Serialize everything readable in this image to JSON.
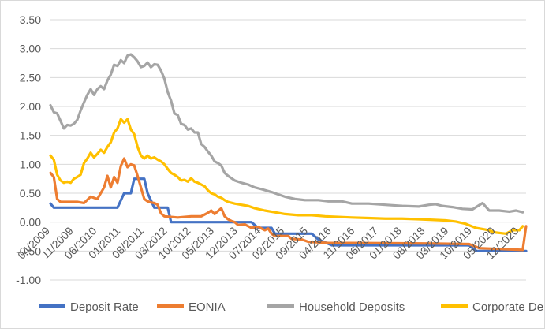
{
  "chart_data": {
    "type": "line",
    "title": "",
    "xlabel": "",
    "ylabel": "",
    "ylim": [
      -1.0,
      3.5
    ],
    "yticks": [
      "3.50",
      "3.00",
      "2.50",
      "2.00",
      "1.50",
      "1.00",
      "0.50",
      "0.00",
      "-0.50",
      "-1.00"
    ],
    "ytick_values": [
      3.5,
      3.0,
      2.5,
      2.0,
      1.5,
      1.0,
      0.5,
      0.0,
      -0.5,
      -1.0
    ],
    "x_start": "04/2009",
    "n_months": 143,
    "xtick_labels": [
      "04/2009",
      "11/2009",
      "06/2010",
      "01/2011",
      "08/2011",
      "03/2012",
      "10/2012",
      "05/2013",
      "12/2013",
      "07/2014",
      "02/2015",
      "09/2015",
      "04/2016",
      "11/2016",
      "06/2017",
      "01/2018",
      "08/2018",
      "03/2019",
      "10/2019",
      "05/2020",
      "12/2020"
    ],
    "xtick_month_index": [
      0,
      7,
      14,
      21,
      28,
      35,
      42,
      49,
      56,
      63,
      70,
      77,
      84,
      91,
      98,
      105,
      112,
      119,
      126,
      133,
      140
    ],
    "legend_position": "bottom",
    "series": [
      {
        "name": "Deposit Rate",
        "color": "#4472C4",
        "points": [
          [
            0,
            0.32
          ],
          [
            1,
            0.25
          ],
          [
            20,
            0.25
          ],
          [
            22,
            0.5
          ],
          [
            24,
            0.5
          ],
          [
            25,
            0.75
          ],
          [
            28,
            0.75
          ],
          [
            29,
            0.5
          ],
          [
            31,
            0.25
          ],
          [
            35,
            0.25
          ],
          [
            36,
            0.0
          ],
          [
            60,
            0.0
          ],
          [
            62,
            -0.1
          ],
          [
            66,
            -0.1
          ],
          [
            67,
            -0.2
          ],
          [
            78,
            -0.2
          ],
          [
            80,
            -0.3
          ],
          [
            84,
            -0.4
          ],
          [
            125,
            -0.4
          ],
          [
            127,
            -0.5
          ],
          [
            142,
            -0.5
          ]
        ]
      },
      {
        "name": "EONIA",
        "color": "#ED7D31",
        "points": [
          [
            0,
            0.85
          ],
          [
            1,
            0.78
          ],
          [
            2,
            0.4
          ],
          [
            3,
            0.35
          ],
          [
            8,
            0.35
          ],
          [
            10,
            0.33
          ],
          [
            12,
            0.44
          ],
          [
            14,
            0.4
          ],
          [
            16,
            0.6
          ],
          [
            17,
            0.8
          ],
          [
            18,
            0.6
          ],
          [
            19,
            0.78
          ],
          [
            20,
            0.68
          ],
          [
            21,
            0.97
          ],
          [
            22,
            1.1
          ],
          [
            23,
            0.95
          ],
          [
            24,
            1.0
          ],
          [
            25,
            0.98
          ],
          [
            26,
            0.8
          ],
          [
            27,
            0.6
          ],
          [
            28,
            0.4
          ],
          [
            29,
            0.36
          ],
          [
            30,
            0.34
          ],
          [
            31,
            0.33
          ],
          [
            32,
            0.3
          ],
          [
            33,
            0.15
          ],
          [
            34,
            0.1
          ],
          [
            38,
            0.08
          ],
          [
            42,
            0.1
          ],
          [
            45,
            0.1
          ],
          [
            47,
            0.16
          ],
          [
            48,
            0.2
          ],
          [
            49,
            0.14
          ],
          [
            50,
            0.19
          ],
          [
            51,
            0.24
          ],
          [
            52,
            0.1
          ],
          [
            53,
            0.05
          ],
          [
            54,
            0.02
          ],
          [
            55,
            0.0
          ],
          [
            56,
            -0.05
          ],
          [
            58,
            -0.04
          ],
          [
            60,
            -0.1
          ],
          [
            62,
            -0.08
          ],
          [
            64,
            -0.14
          ],
          [
            65,
            -0.11
          ],
          [
            66,
            -0.2
          ],
          [
            67,
            -0.24
          ],
          [
            71,
            -0.24
          ],
          [
            72,
            -0.29
          ],
          [
            75,
            -0.3
          ],
          [
            77,
            -0.34
          ],
          [
            80,
            -0.35
          ],
          [
            83,
            -0.36
          ],
          [
            90,
            -0.36
          ],
          [
            115,
            -0.37
          ],
          [
            125,
            -0.38
          ],
          [
            128,
            -0.45
          ],
          [
            141,
            -0.48
          ],
          [
            142,
            -0.07
          ]
        ]
      },
      {
        "name": "Household Deposits",
        "color": "#A5A5A5",
        "points": [
          [
            0,
            2.02
          ],
          [
            1,
            1.9
          ],
          [
            2,
            1.88
          ],
          [
            3,
            1.75
          ],
          [
            4,
            1.62
          ],
          [
            5,
            1.68
          ],
          [
            6,
            1.67
          ],
          [
            7,
            1.7
          ],
          [
            8,
            1.77
          ],
          [
            9,
            1.93
          ],
          [
            10,
            2.07
          ],
          [
            11,
            2.2
          ],
          [
            12,
            2.3
          ],
          [
            13,
            2.2
          ],
          [
            14,
            2.3
          ],
          [
            15,
            2.35
          ],
          [
            16,
            2.3
          ],
          [
            17,
            2.45
          ],
          [
            18,
            2.55
          ],
          [
            19,
            2.72
          ],
          [
            20,
            2.7
          ],
          [
            21,
            2.8
          ],
          [
            22,
            2.75
          ],
          [
            23,
            2.88
          ],
          [
            24,
            2.9
          ],
          [
            25,
            2.85
          ],
          [
            26,
            2.78
          ],
          [
            27,
            2.68
          ],
          [
            28,
            2.7
          ],
          [
            29,
            2.76
          ],
          [
            30,
            2.68
          ],
          [
            31,
            2.73
          ],
          [
            32,
            2.72
          ],
          [
            33,
            2.62
          ],
          [
            34,
            2.48
          ],
          [
            35,
            2.25
          ],
          [
            36,
            2.1
          ],
          [
            37,
            1.88
          ],
          [
            38,
            1.85
          ],
          [
            39,
            1.7
          ],
          [
            40,
            1.68
          ],
          [
            41,
            1.6
          ],
          [
            42,
            1.62
          ],
          [
            43,
            1.55
          ],
          [
            44,
            1.55
          ],
          [
            45,
            1.35
          ],
          [
            46,
            1.3
          ],
          [
            47,
            1.22
          ],
          [
            48,
            1.15
          ],
          [
            49,
            1.05
          ],
          [
            50,
            1.02
          ],
          [
            51,
            0.98
          ],
          [
            52,
            0.85
          ],
          [
            53,
            0.8
          ],
          [
            54,
            0.76
          ],
          [
            55,
            0.72
          ],
          [
            57,
            0.68
          ],
          [
            59,
            0.65
          ],
          [
            61,
            0.6
          ],
          [
            63,
            0.57
          ],
          [
            66,
            0.52
          ],
          [
            68,
            0.48
          ],
          [
            70,
            0.44
          ],
          [
            73,
            0.4
          ],
          [
            76,
            0.38
          ],
          [
            80,
            0.38
          ],
          [
            83,
            0.36
          ],
          [
            87,
            0.36
          ],
          [
            90,
            0.32
          ],
          [
            95,
            0.32
          ],
          [
            100,
            0.3
          ],
          [
            105,
            0.28
          ],
          [
            110,
            0.27
          ],
          [
            113,
            0.3
          ],
          [
            115,
            0.31
          ],
          [
            117,
            0.28
          ],
          [
            120,
            0.26
          ],
          [
            123,
            0.23
          ],
          [
            126,
            0.22
          ],
          [
            129,
            0.33
          ],
          [
            131,
            0.2
          ],
          [
            134,
            0.2
          ],
          [
            137,
            0.18
          ],
          [
            139,
            0.2
          ],
          [
            141,
            0.17
          ]
        ]
      },
      {
        "name": "Corporate Deposits",
        "color": "#FFC000",
        "points": [
          [
            0,
            1.15
          ],
          [
            1,
            1.08
          ],
          [
            2,
            0.82
          ],
          [
            3,
            0.72
          ],
          [
            4,
            0.68
          ],
          [
            5,
            0.7
          ],
          [
            6,
            0.68
          ],
          [
            7,
            0.75
          ],
          [
            8,
            0.78
          ],
          [
            9,
            0.82
          ],
          [
            10,
            1.02
          ],
          [
            11,
            1.1
          ],
          [
            12,
            1.2
          ],
          [
            13,
            1.12
          ],
          [
            14,
            1.18
          ],
          [
            15,
            1.25
          ],
          [
            16,
            1.2
          ],
          [
            17,
            1.3
          ],
          [
            18,
            1.38
          ],
          [
            19,
            1.55
          ],
          [
            20,
            1.62
          ],
          [
            21,
            1.78
          ],
          [
            22,
            1.72
          ],
          [
            23,
            1.78
          ],
          [
            24,
            1.6
          ],
          [
            25,
            1.52
          ],
          [
            26,
            1.3
          ],
          [
            27,
            1.15
          ],
          [
            28,
            1.1
          ],
          [
            29,
            1.15
          ],
          [
            30,
            1.1
          ],
          [
            31,
            1.12
          ],
          [
            32,
            1.08
          ],
          [
            33,
            1.05
          ],
          [
            34,
            1.0
          ],
          [
            35,
            0.92
          ],
          [
            36,
            0.85
          ],
          [
            37,
            0.82
          ],
          [
            38,
            0.78
          ],
          [
            39,
            0.72
          ],
          [
            40,
            0.73
          ],
          [
            41,
            0.7
          ],
          [
            42,
            0.76
          ],
          [
            43,
            0.7
          ],
          [
            44,
            0.68
          ],
          [
            45,
            0.65
          ],
          [
            46,
            0.62
          ],
          [
            47,
            0.55
          ],
          [
            48,
            0.5
          ],
          [
            49,
            0.48
          ],
          [
            50,
            0.44
          ],
          [
            51,
            0.42
          ],
          [
            52,
            0.38
          ],
          [
            53,
            0.35
          ],
          [
            55,
            0.32
          ],
          [
            57,
            0.3
          ],
          [
            59,
            0.28
          ],
          [
            61,
            0.24
          ],
          [
            64,
            0.2
          ],
          [
            67,
            0.17
          ],
          [
            70,
            0.14
          ],
          [
            74,
            0.12
          ],
          [
            78,
            0.12
          ],
          [
            82,
            0.1
          ],
          [
            86,
            0.09
          ],
          [
            90,
            0.08
          ],
          [
            95,
            0.07
          ],
          [
            100,
            0.06
          ],
          [
            105,
            0.06
          ],
          [
            110,
            0.05
          ],
          [
            114,
            0.04
          ],
          [
            118,
            0.03
          ],
          [
            121,
            0.01
          ],
          [
            124,
            -0.03
          ],
          [
            127,
            -0.1
          ],
          [
            130,
            -0.13
          ],
          [
            133,
            -0.18
          ],
          [
            136,
            -0.2
          ],
          [
            138,
            -0.14
          ],
          [
            140,
            -0.14
          ],
          [
            141,
            -0.07
          ]
        ]
      }
    ]
  }
}
